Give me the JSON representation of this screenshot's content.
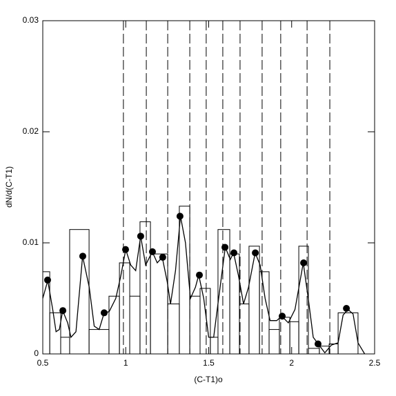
{
  "chart_data": {
    "type": "histogram",
    "xlabel": "(C-T1)o",
    "ylabel": "dN/d(C-T1)",
    "xlim": [
      0.5,
      2.5
    ],
    "ylim": [
      0,
      0.03
    ],
    "xticks": [
      0.5,
      1,
      1.5,
      2,
      2.5
    ],
    "yticks": [
      0,
      0.01,
      0.02,
      0.03
    ],
    "bins": [
      0.5,
      0.542,
      0.608,
      0.662,
      0.779,
      0.899,
      0.962,
      1.024,
      1.086,
      1.149,
      1.253,
      1.323,
      1.386,
      1.448,
      1.51,
      1.556,
      1.627,
      1.685,
      1.743,
      1.806,
      1.864,
      1.926,
      1.989,
      2.043,
      2.101,
      2.167,
      2.226,
      2.28,
      2.4
    ],
    "values": [
      0.0074,
      0.0037,
      0.0015,
      0.0112,
      0.0022,
      0.0052,
      0.0082,
      0.0052,
      0.0119,
      0.009,
      0.0045,
      0.0133,
      0.0052,
      0.0059,
      0.0015,
      0.0112,
      0.009,
      0.0045,
      0.0097,
      0.0074,
      0.0022,
      0.0033,
      0.0029,
      0.0097,
      0.0005,
      0.0007,
      0.0009,
      0.0037
    ],
    "color": "#000000",
    "curve": {
      "x": [
        0.5,
        0.53,
        0.56,
        0.58,
        0.6,
        0.62,
        0.65,
        0.67,
        0.7,
        0.74,
        0.78,
        0.81,
        0.84,
        0.87,
        0.9,
        0.94,
        0.97,
        1.0,
        1.03,
        1.06,
        1.09,
        1.12,
        1.16,
        1.19,
        1.22,
        1.25,
        1.27,
        1.3,
        1.33,
        1.36,
        1.39,
        1.42,
        1.44,
        1.47,
        1.5,
        1.53,
        1.56,
        1.6,
        1.63,
        1.65,
        1.68,
        1.71,
        1.74,
        1.78,
        1.81,
        1.84,
        1.87,
        1.91,
        1.94,
        1.98,
        2.02,
        2.07,
        2.1,
        2.13,
        2.16,
        2.2,
        2.24,
        2.28,
        2.31,
        2.34,
        2.37,
        2.4,
        2.44
      ],
      "y": [
        0.005,
        0.0066,
        0.004,
        0.002,
        0.0022,
        0.0039,
        0.0028,
        0.0015,
        0.002,
        0.0088,
        0.006,
        0.0025,
        0.0022,
        0.0037,
        0.0038,
        0.005,
        0.007,
        0.0094,
        0.008,
        0.0075,
        0.0106,
        0.008,
        0.0092,
        0.0082,
        0.0087,
        0.0065,
        0.0045,
        0.0075,
        0.0124,
        0.01,
        0.005,
        0.006,
        0.0071,
        0.005,
        0.0015,
        0.0015,
        0.005,
        0.0096,
        0.0085,
        0.0091,
        0.007,
        0.0045,
        0.006,
        0.0091,
        0.008,
        0.005,
        0.003,
        0.003,
        0.0034,
        0.0028,
        0.004,
        0.0082,
        0.005,
        0.0015,
        0.0009,
        0.0001,
        0.0008,
        0.001,
        0.0035,
        0.004,
        0.0036,
        0.001,
        0
      ]
    },
    "points": {
      "x": [
        0.529,
        0.621,
        0.741,
        0.87,
        0.999,
        1.09,
        1.161,
        1.223,
        1.327,
        1.444,
        1.598,
        1.652,
        1.781,
        1.943,
        2.072,
        2.159,
        2.33
      ],
      "y": [
        0.00665,
        0.0039,
        0.0088,
        0.0037,
        0.0094,
        0.0106,
        0.0092,
        0.0087,
        0.0124,
        0.0071,
        0.0096,
        0.0091,
        0.0091,
        0.0034,
        0.0082,
        0.0009,
        0.0041
      ]
    },
    "vlines": [
      0.986,
      1.124,
      1.253,
      1.386,
      1.485,
      1.585,
      1.689,
      1.822,
      1.934,
      2.093,
      2.23
    ]
  }
}
